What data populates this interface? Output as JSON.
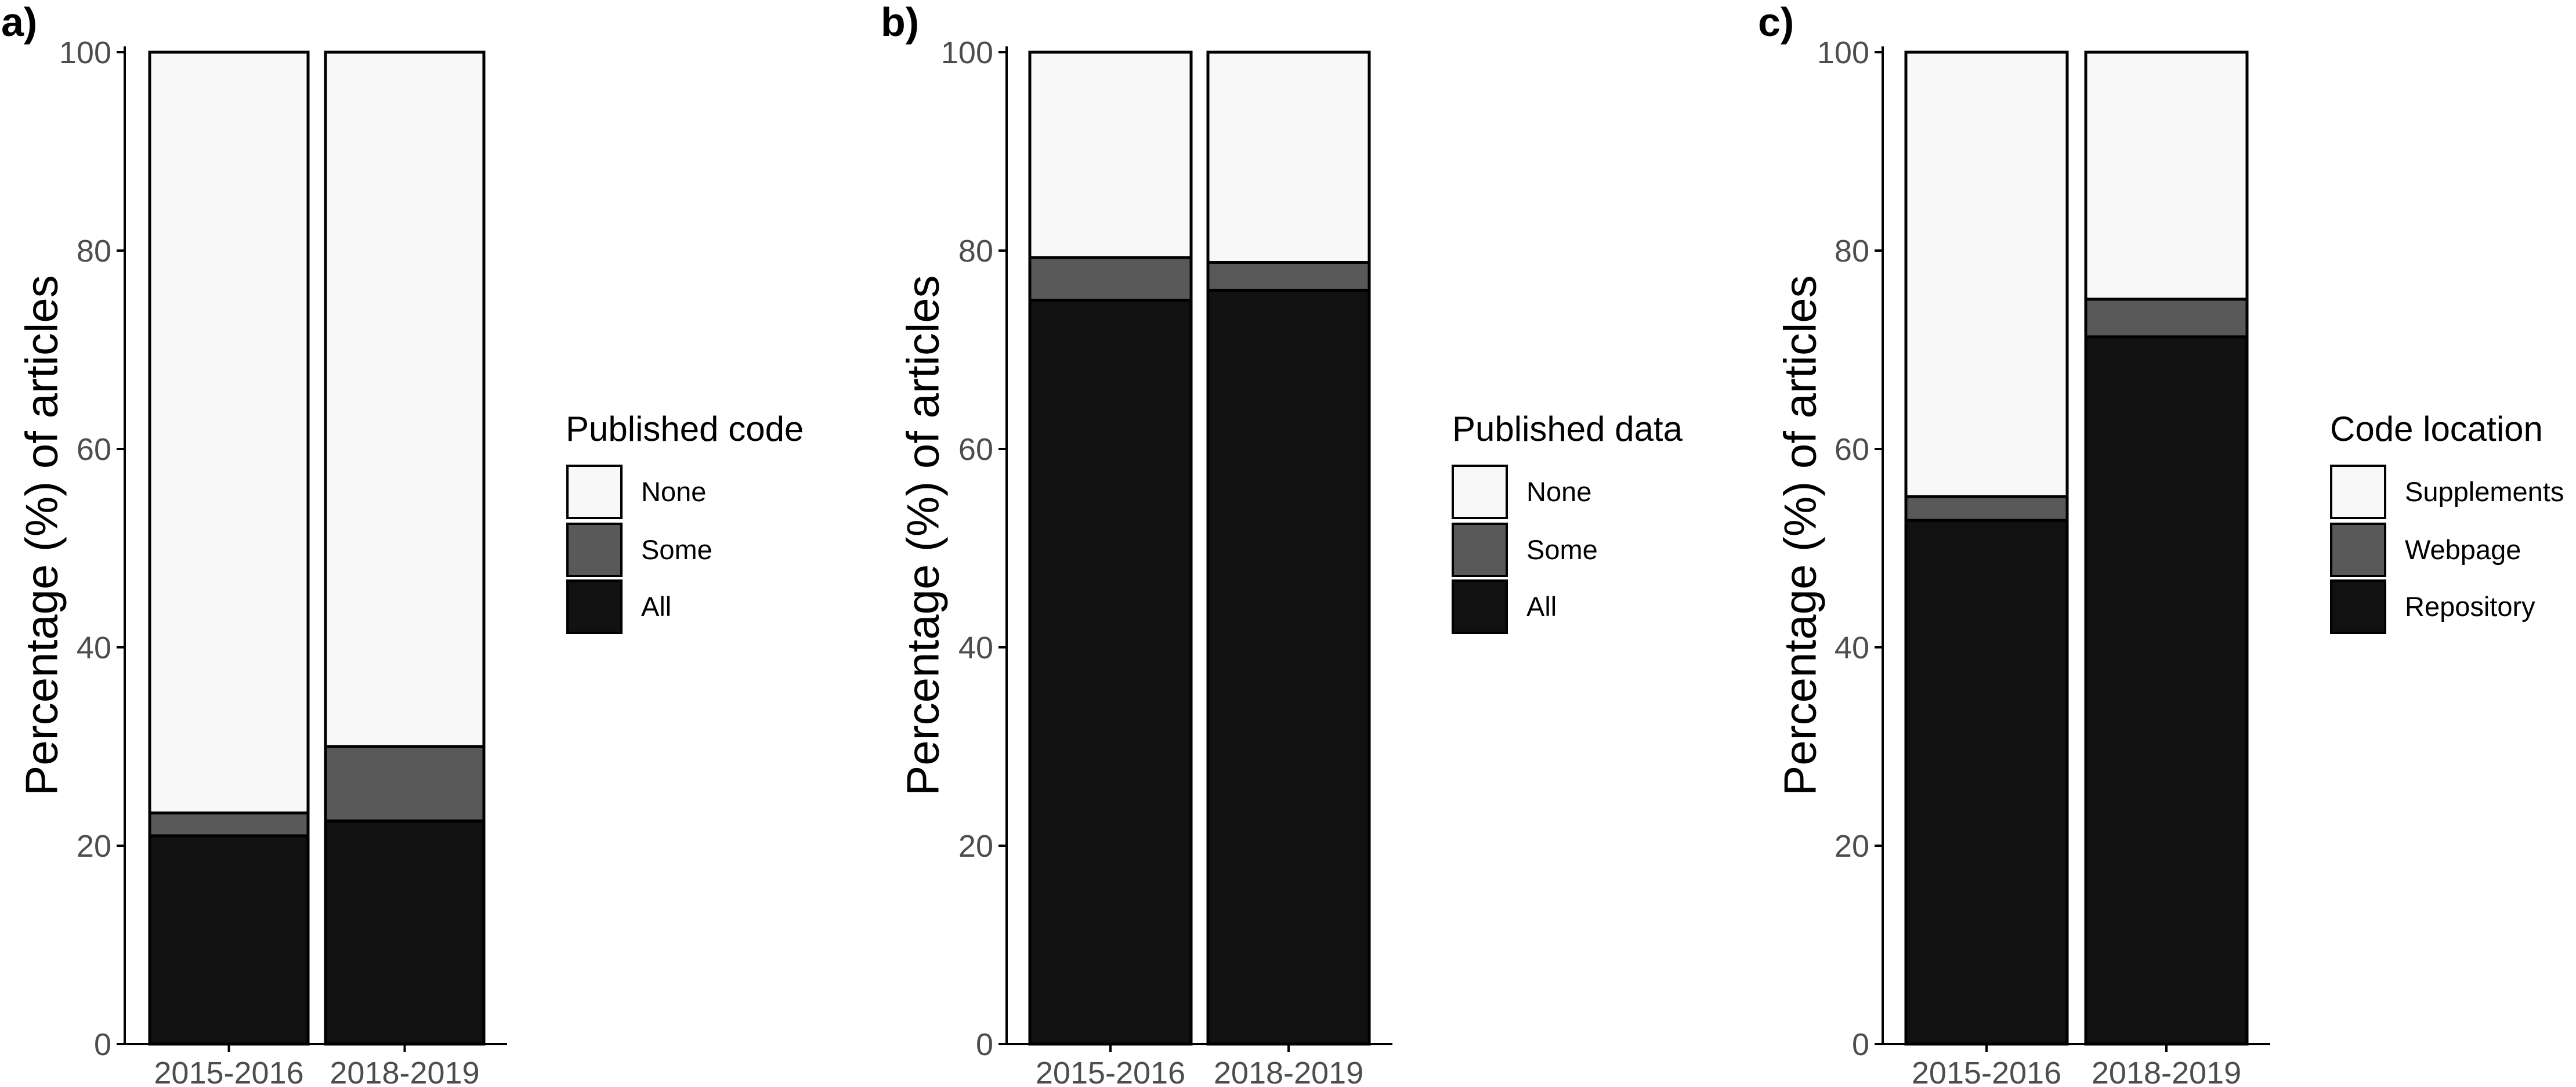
{
  "colors": {
    "none": "#f8f8f8",
    "some": "#595959",
    "all": "#111111",
    "axis": "#000000",
    "tick_text": "#4d4d4d"
  },
  "chart_data": [
    {
      "type": "bar",
      "stacked": true,
      "panel_label": "a)",
      "ylabel": "Percentage (%) of articles",
      "xlabel": "",
      "categories": [
        "2015-2016",
        "2018-2019"
      ],
      "ylim": [
        0,
        100
      ],
      "yticks": [
        "0",
        "20",
        "40",
        "60",
        "80",
        "100"
      ],
      "legend_title": "Published code",
      "legend_position": "right",
      "series": [
        {
          "name": "All",
          "color_key": "all",
          "values": [
            21.0,
            22.5
          ]
        },
        {
          "name": "Some",
          "color_key": "some",
          "values": [
            2.3,
            7.5
          ]
        },
        {
          "name": "None",
          "color_key": "none",
          "values": [
            76.7,
            70.0
          ]
        }
      ]
    },
    {
      "type": "bar",
      "stacked": true,
      "panel_label": "b)",
      "ylabel": "Percentage (%) of articles",
      "xlabel": "",
      "categories": [
        "2015-2016",
        "2018-2019"
      ],
      "ylim": [
        0,
        100
      ],
      "yticks": [
        "0",
        "20",
        "40",
        "60",
        "80",
        "100"
      ],
      "legend_title": "Published data",
      "legend_position": "right",
      "series": [
        {
          "name": "All",
          "color_key": "all",
          "values": [
            75.0,
            76.0
          ]
        },
        {
          "name": "Some",
          "color_key": "some",
          "values": [
            4.3,
            2.8
          ]
        },
        {
          "name": "None",
          "color_key": "none",
          "values": [
            20.7,
            21.2
          ]
        }
      ]
    },
    {
      "type": "bar",
      "stacked": true,
      "panel_label": "c)",
      "ylabel": "Percentage (%) of articles",
      "xlabel": "",
      "categories": [
        "2015-2016",
        "2018-2019"
      ],
      "ylim": [
        0,
        100
      ],
      "yticks": [
        "0",
        "20",
        "40",
        "60",
        "80",
        "100"
      ],
      "legend_title": "Code location",
      "legend_position": "right",
      "series": [
        {
          "name": "Repository",
          "color_key": "all",
          "values": [
            52.8,
            71.3
          ]
        },
        {
          "name": "Webpage",
          "color_key": "some",
          "values": [
            2.4,
            3.8
          ]
        },
        {
          "name": "Supplements",
          "color_key": "none",
          "values": [
            44.8,
            24.9
          ]
        }
      ]
    }
  ]
}
